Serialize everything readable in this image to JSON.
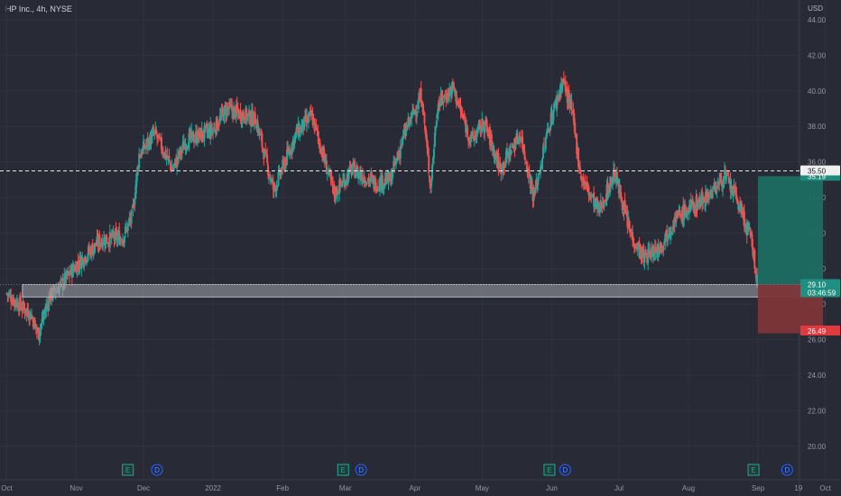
{
  "header": {
    "title": "HP Inc., 4h, NYSE",
    "unit": "USD"
  },
  "chart_data": {
    "type": "candlestick",
    "ylim": [
      19,
      45
    ],
    "y_ticks": [
      "20.00",
      "22.00",
      "24.00",
      "26.00",
      "28.00",
      "30.00",
      "32.00",
      "34.00",
      "36.00",
      "38.00",
      "40.00",
      "42.00",
      "44.00"
    ],
    "x_ticks": [
      "Oct",
      "Nov",
      "Dec",
      "2022",
      "Feb",
      "Mar",
      "Apr",
      "May",
      "Jun",
      "Jul",
      "Aug",
      "Sep",
      "19",
      "Oct"
    ],
    "x_dates": [
      "2021-10-01",
      "2021-11-01",
      "2021-12-01",
      "2022-01-01",
      "2022-02-01",
      "2022-03-01",
      "2022-04-01",
      "2022-05-01",
      "2022-06-01",
      "2022-07-01",
      "2022-08-01",
      "2022-09-01",
      "2022-09-19",
      "2022-10-01"
    ],
    "close_trajectory": [
      {
        "date": "2021-10-01",
        "value": 28.6
      },
      {
        "date": "2021-10-12",
        "value": 27.4
      },
      {
        "date": "2021-10-15",
        "value": 26.3
      },
      {
        "date": "2021-10-20",
        "value": 28.4
      },
      {
        "date": "2021-10-26",
        "value": 29.2
      },
      {
        "date": "2021-11-01",
        "value": 30.2
      },
      {
        "date": "2021-11-12",
        "value": 31.6
      },
      {
        "date": "2021-11-22",
        "value": 31.8
      },
      {
        "date": "2021-11-26",
        "value": 33.0
      },
      {
        "date": "2021-11-29",
        "value": 36.4
      },
      {
        "date": "2021-12-06",
        "value": 37.6
      },
      {
        "date": "2021-12-14",
        "value": 35.6
      },
      {
        "date": "2021-12-20",
        "value": 37.2
      },
      {
        "date": "2022-01-01",
        "value": 37.8
      },
      {
        "date": "2022-01-07",
        "value": 39.0
      },
      {
        "date": "2022-01-20",
        "value": 38.4
      },
      {
        "date": "2022-01-28",
        "value": 34.4
      },
      {
        "date": "2022-02-07",
        "value": 37.6
      },
      {
        "date": "2022-02-14",
        "value": 38.6
      },
      {
        "date": "2022-02-24",
        "value": 34.2
      },
      {
        "date": "2022-03-04",
        "value": 35.6
      },
      {
        "date": "2022-03-14",
        "value": 34.8
      },
      {
        "date": "2022-03-21",
        "value": 35.0
      },
      {
        "date": "2022-03-28",
        "value": 37.8
      },
      {
        "date": "2022-04-04",
        "value": 39.8
      },
      {
        "date": "2022-04-08",
        "value": 34.6
      },
      {
        "date": "2022-04-11",
        "value": 39.2
      },
      {
        "date": "2022-04-18",
        "value": 40.2
      },
      {
        "date": "2022-04-22",
        "value": 38.6
      },
      {
        "date": "2022-04-26",
        "value": 37.2
      },
      {
        "date": "2022-05-02",
        "value": 38.2
      },
      {
        "date": "2022-05-09",
        "value": 35.6
      },
      {
        "date": "2022-05-18",
        "value": 37.6
      },
      {
        "date": "2022-05-24",
        "value": 34.0
      },
      {
        "date": "2022-05-31",
        "value": 38.2
      },
      {
        "date": "2022-06-06",
        "value": 40.6
      },
      {
        "date": "2022-06-10",
        "value": 38.8
      },
      {
        "date": "2022-06-14",
        "value": 35.2
      },
      {
        "date": "2022-06-22",
        "value": 33.2
      },
      {
        "date": "2022-06-29",
        "value": 35.4
      },
      {
        "date": "2022-07-06",
        "value": 32.0
      },
      {
        "date": "2022-07-12",
        "value": 30.6
      },
      {
        "date": "2022-07-19",
        "value": 31.2
      },
      {
        "date": "2022-07-26",
        "value": 32.8
      },
      {
        "date": "2022-08-04",
        "value": 33.6
      },
      {
        "date": "2022-08-12",
        "value": 34.4
      },
      {
        "date": "2022-08-17",
        "value": 35.2
      },
      {
        "date": "2022-08-23",
        "value": 33.8
      },
      {
        "date": "2022-08-26",
        "value": 32.6
      },
      {
        "date": "2022-08-29",
        "value": 31.6
      },
      {
        "date": "2022-09-01",
        "value": 28.9
      }
    ],
    "horizontal_line": {
      "value": 35.5,
      "label": "35.50"
    },
    "zone": {
      "from": "2021-10-08",
      "to": "2022-09-20",
      "low": 28.4,
      "high": 29.1
    },
    "position": {
      "start": "2022-09-01",
      "end": "2022-09-30",
      "entry": 29.1,
      "target": 35.2,
      "stop": 26.35,
      "target_color": "#1c6b62",
      "stop_color": "#7d3538"
    },
    "price_tags": [
      {
        "value": 35.2,
        "label": "35.19",
        "bg": "#1c8b7a",
        "color": "#ffffff",
        "partial": true
      },
      {
        "value": 29.1,
        "label": "29.10",
        "sub": "03:46:59",
        "bg": "#1e8f80",
        "color": "#ffffff"
      },
      {
        "value": 26.49,
        "label": "26.49",
        "bg": "#e0393e",
        "color": "#ffffff"
      }
    ],
    "events": [
      {
        "date": "2021-11-24",
        "label": "E",
        "kind": "earnings"
      },
      {
        "date": "2021-12-07",
        "label": "D",
        "kind": "dividend"
      },
      {
        "date": "2022-02-28",
        "label": "E",
        "kind": "earnings"
      },
      {
        "date": "2022-03-08",
        "label": "D",
        "kind": "dividend"
      },
      {
        "date": "2022-05-31",
        "label": "E",
        "kind": "earnings"
      },
      {
        "date": "2022-06-07",
        "label": "D",
        "kind": "dividend"
      },
      {
        "date": "2022-08-30",
        "label": "E",
        "kind": "earnings"
      },
      {
        "date": "2022-09-14",
        "label": "D",
        "kind": "dividend"
      }
    ],
    "colors": {
      "up": "#26a69a",
      "down": "#ef5350",
      "grid": "#30333d",
      "background": "#282a36"
    }
  }
}
